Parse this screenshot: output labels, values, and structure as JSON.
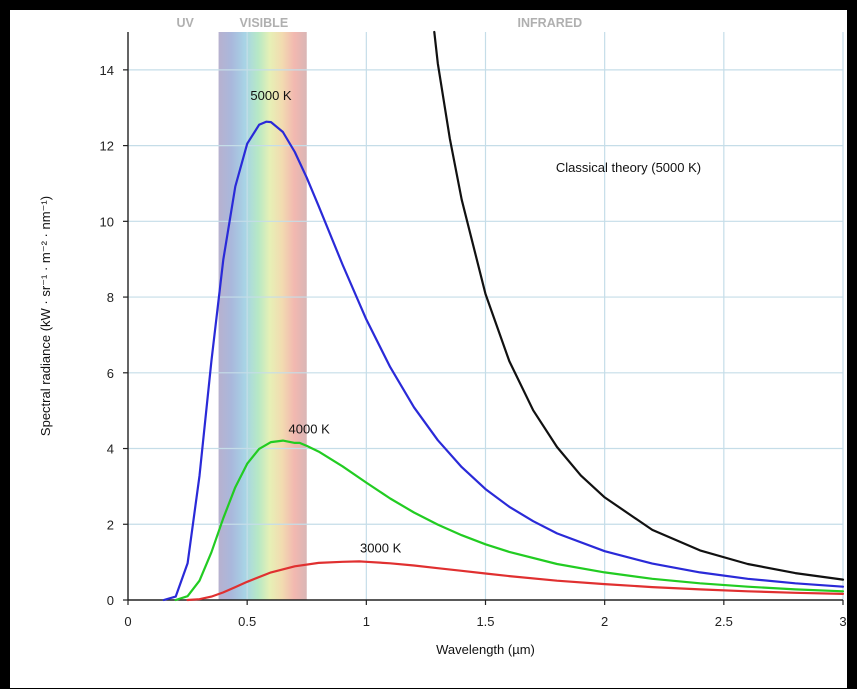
{
  "chart_data": {
    "type": "line",
    "title": "",
    "xlabel": "Wavelength (µm)",
    "ylabel": "Spectral radiance (kW · sr⁻¹ · m⁻² · nm⁻¹)",
    "xlim": [
      0,
      3
    ],
    "ylim": [
      0,
      15
    ],
    "x_ticks": [
      "0",
      "0.5",
      "1",
      "1.5",
      "2",
      "2.5",
      "3"
    ],
    "y_ticks": [
      "0",
      "2",
      "4",
      "6",
      "8",
      "10",
      "12",
      "14"
    ],
    "grid": true,
    "regions": [
      {
        "label": "UV",
        "range": [
          0,
          0.38
        ]
      },
      {
        "label": "VISIBLE",
        "range": [
          0.38,
          0.75
        ]
      },
      {
        "label": "INFRARED",
        "range": [
          0.75,
          3
        ]
      }
    ],
    "series": [
      {
        "name": "5000 K",
        "color": "#2a2ad8",
        "x": [
          0.15,
          0.2,
          0.25,
          0.3,
          0.35,
          0.4,
          0.45,
          0.5,
          0.55,
          0.58,
          0.6,
          0.65,
          0.7,
          0.75,
          0.8,
          0.9,
          1.0,
          1.1,
          1.2,
          1.3,
          1.4,
          1.5,
          1.6,
          1.7,
          1.8,
          2.0,
          2.2,
          2.4,
          2.6,
          2.8,
          3.0
        ],
        "y": [
          0.0,
          0.09,
          0.97,
          3.28,
          6.31,
          8.99,
          10.92,
          12.05,
          12.55,
          12.63,
          12.62,
          12.36,
          11.83,
          11.15,
          10.4,
          8.86,
          7.41,
          6.15,
          5.09,
          4.22,
          3.51,
          2.93,
          2.46,
          2.08,
          1.76,
          1.29,
          0.96,
          0.73,
          0.56,
          0.44,
          0.35
        ]
      },
      {
        "name": "4000 K",
        "color": "#22cc22",
        "x": [
          0.2,
          0.25,
          0.3,
          0.35,
          0.4,
          0.45,
          0.5,
          0.55,
          0.6,
          0.65,
          0.7,
          0.72,
          0.75,
          0.8,
          0.9,
          1.0,
          1.1,
          1.2,
          1.3,
          1.4,
          1.5,
          1.6,
          1.8,
          2.0,
          2.2,
          2.4,
          2.6,
          2.8,
          3.0
        ],
        "y": [
          0.0,
          0.1,
          0.51,
          1.26,
          2.16,
          2.98,
          3.6,
          3.99,
          4.17,
          4.21,
          4.15,
          4.15,
          4.07,
          3.92,
          3.53,
          3.1,
          2.68,
          2.31,
          1.99,
          1.71,
          1.47,
          1.27,
          0.95,
          0.73,
          0.56,
          0.44,
          0.35,
          0.28,
          0.23
        ]
      },
      {
        "name": "3000 K",
        "color": "#e03030",
        "x": [
          0.25,
          0.3,
          0.35,
          0.4,
          0.45,
          0.5,
          0.6,
          0.7,
          0.8,
          0.9,
          0.97,
          1.0,
          1.1,
          1.2,
          1.3,
          1.4,
          1.5,
          1.6,
          1.8,
          2.0,
          2.2,
          2.4,
          2.6,
          2.8,
          3.0
        ],
        "y": [
          0.0,
          0.02,
          0.09,
          0.2,
          0.34,
          0.48,
          0.73,
          0.89,
          0.98,
          1.01,
          1.02,
          1.01,
          0.97,
          0.91,
          0.84,
          0.77,
          0.7,
          0.63,
          0.51,
          0.42,
          0.34,
          0.28,
          0.23,
          0.19,
          0.16
        ]
      },
      {
        "name": "Classical theory (5000 K)",
        "color": "#111111",
        "x": [
          1.285,
          1.3,
          1.35,
          1.4,
          1.5,
          1.6,
          1.7,
          1.8,
          1.9,
          2.0,
          2.2,
          2.4,
          2.6,
          2.8,
          3.0
        ],
        "y": [
          15.0,
          14.17,
          12.19,
          10.57,
          8.08,
          6.31,
          5.01,
          4.04,
          3.29,
          2.71,
          1.85,
          1.31,
          0.95,
          0.71,
          0.54
        ]
      }
    ],
    "annotations": [
      {
        "text": "5000 K",
        "x": 0.6,
        "y": 13.2
      },
      {
        "text": "4000 K",
        "x": 0.76,
        "y": 4.4
      },
      {
        "text": "3000 K",
        "x": 1.06,
        "y": 1.25
      },
      {
        "text": "Classical theory (5000 K)",
        "x": 2.1,
        "y": 11.3
      }
    ]
  }
}
